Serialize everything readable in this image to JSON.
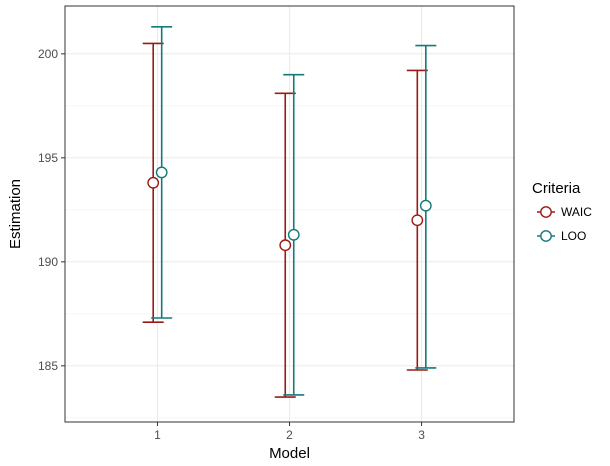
{
  "chart_data": {
    "type": "scatter",
    "subtype": "point-range",
    "xlabel": "Model",
    "ylabel": "Estimation",
    "categories": [
      "1",
      "2",
      "3"
    ],
    "ylim": [
      182.3,
      202.3
    ],
    "yticks": [
      185,
      190,
      195,
      200
    ],
    "grid": true,
    "legend": {
      "title": "Criteria",
      "placement": "right"
    },
    "series": [
      {
        "name": "WAIC",
        "color": "#9b1b14",
        "points": [
          {
            "x": "1",
            "y": 193.8,
            "lower": 187.1,
            "upper": 200.5
          },
          {
            "x": "2",
            "y": 190.8,
            "lower": 183.5,
            "upper": 198.1
          },
          {
            "x": "3",
            "y": 192.0,
            "lower": 184.8,
            "upper": 199.2
          }
        ]
      },
      {
        "name": "LOO",
        "color": "#137a78",
        "points": [
          {
            "x": "1",
            "y": 194.3,
            "lower": 187.3,
            "upper": 201.3
          },
          {
            "x": "2",
            "y": 191.3,
            "lower": 183.6,
            "upper": 199.0
          },
          {
            "x": "3",
            "y": 192.7,
            "lower": 184.9,
            "upper": 200.4
          }
        ]
      }
    ]
  }
}
